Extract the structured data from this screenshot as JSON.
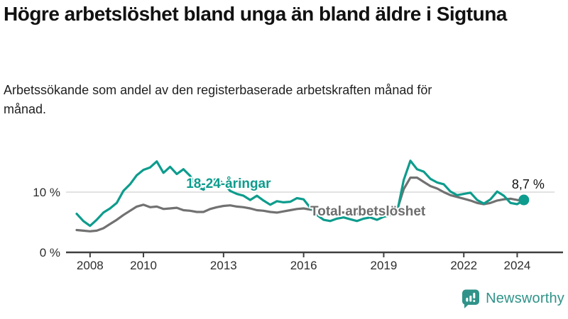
{
  "header": {
    "title": "Högre arbetslöshet bland unga än bland äldre i Sigtuna",
    "subtitle": "Arbetssökande som andel av den registerbaserade arbetskraften månad för månad."
  },
  "chart_data": {
    "type": "line",
    "title": "Högre arbetslöshet bland unga än bland äldre i Sigtuna",
    "ylabel": "",
    "xlabel": "",
    "x_unit": "decimal_year_quarterly",
    "x_start": 2008.0,
    "x_step_years": 0.25,
    "x_tick_years": [
      2008,
      2010,
      2013,
      2016,
      2019,
      2022,
      2024
    ],
    "xlim": [
      2007.6,
      2026.2
    ],
    "ylim": [
      0,
      18
    ],
    "y_axis": {
      "unit": "%",
      "ticks": [
        {
          "value": 0,
          "label": "0 %"
        },
        {
          "value": 10,
          "label": "10 %"
        }
      ],
      "gridline_values": [
        10
      ]
    },
    "legend_position": "inline-labels",
    "series": [
      {
        "name": "Total arbetslöshet",
        "color": "#717171",
        "label_color": "#6d6d6d",
        "end_dot": false,
        "label": {
          "text": "Total arbetslöshet",
          "x": 2016.75,
          "y": 6.1
        },
        "values": [
          3.7,
          3.6,
          3.5,
          3.6,
          4.0,
          4.7,
          5.4,
          6.2,
          6.9,
          7.6,
          7.9,
          7.5,
          7.6,
          7.2,
          7.3,
          7.4,
          7.0,
          6.9,
          6.7,
          6.7,
          7.2,
          7.5,
          7.7,
          7.8,
          7.6,
          7.5,
          7.3,
          7.0,
          6.9,
          6.7,
          6.6,
          6.8,
          7.0,
          7.2,
          7.3,
          7.1,
          7.0,
          6.9,
          6.8,
          6.7,
          6.6,
          6.5,
          6.4,
          6.4,
          6.5,
          6.5,
          6.6,
          6.7,
          7.0,
          10.5,
          12.4,
          12.4,
          11.7,
          11.0,
          10.6,
          10.0,
          9.5,
          9.2,
          8.9,
          8.6,
          8.2,
          8.0,
          8.2,
          8.6,
          8.8,
          8.9,
          8.7,
          8.6
        ]
      },
      {
        "name": "18-24-åringar",
        "color": "#0d9c8d",
        "label_color": "#0d9c8d",
        "end_dot": true,
        "label": {
          "text": "18-24-åringar",
          "x": 2012.1,
          "y": 10.7
        },
        "values": [
          6.4,
          5.2,
          4.4,
          5.4,
          6.6,
          7.3,
          8.2,
          10.2,
          11.3,
          12.8,
          13.7,
          14.1,
          15.1,
          13.2,
          14.2,
          13.0,
          13.8,
          12.7,
          10.9,
          10.4,
          11.8,
          12.2,
          11.4,
          10.2,
          9.7,
          9.4,
          8.7,
          9.4,
          8.6,
          7.9,
          8.5,
          8.3,
          8.4,
          9.0,
          8.8,
          7.4,
          6.2,
          5.4,
          5.2,
          5.6,
          5.8,
          5.5,
          5.2,
          5.6,
          5.8,
          5.4,
          5.9,
          6.2,
          6.6,
          12.0,
          15.2,
          13.8,
          13.4,
          12.2,
          11.6,
          11.3,
          10.1,
          9.5,
          9.7,
          9.9,
          8.7,
          8.1,
          8.8,
          10.1,
          9.4,
          8.2,
          8.0,
          8.7
        ]
      }
    ],
    "annotation": {
      "text": "8,7 %",
      "value": 8.7,
      "series": "18-24-åringar",
      "x": 2024.3,
      "y": 10.6
    },
    "grid": "single horizontal gridline at 10 %"
  },
  "footer": {
    "brand": "Newsworthy",
    "brand_color": "#2f9389"
  }
}
